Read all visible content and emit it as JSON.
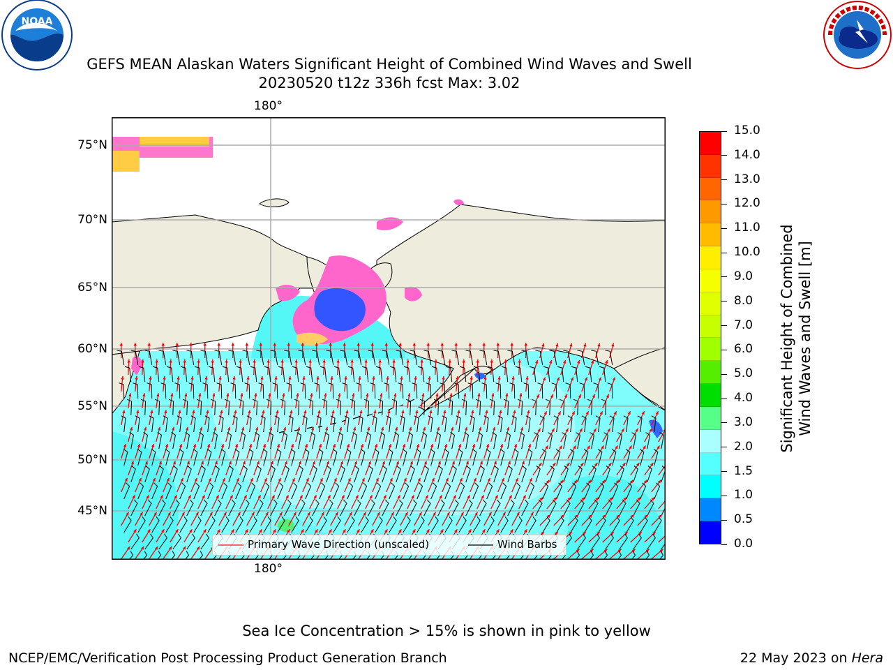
{
  "title": {
    "line1": "GEFS MEAN Alaskan Waters Significant Height of Combined Wind Waves and Swell",
    "line2": "20230520 t12z 336h fcst   Max: 3.02"
  },
  "logos": {
    "left": {
      "name": "noaa-logo",
      "text": "NOAA",
      "ring_text": "NATIONAL OCEANIC AND ATMOSPHERIC ADMINISTRATION · U.S. DEPARTMENT OF COMMERCE"
    },
    "right": {
      "name": "nws-logo",
      "ring_text": "NATIONAL WEATHER SERVICE"
    }
  },
  "map": {
    "lon_labels_top": [
      "180°"
    ],
    "lon_labels_bottom": [
      "180°"
    ],
    "lat_labels": [
      "75°N",
      "70°N",
      "65°N",
      "60°N",
      "55°N",
      "50°N",
      "45°N"
    ],
    "legend": {
      "arrow_label": "Primary Wave Direction (unscaled)",
      "barb_label": "Wind Barbs"
    },
    "colors": {
      "land": "#eeecdc",
      "ocean_low": "#7ffcfc",
      "ocean_mid": "#a8fcfc",
      "ocean_high": "#4ef5f5",
      "ice_pink": "#ff66cc",
      "ice_yellow": "#ffcc33",
      "arrow": "#ff0000",
      "barb": "#000000",
      "grid": "#aaaaaa"
    }
  },
  "colorbar": {
    "label_line1": "Significant Height of Combined",
    "label_line2": "Wind Waves and Swell [m]",
    "ticks": [
      "15.0",
      "14.0",
      "13.0",
      "12.0",
      "11.0",
      "10.0",
      "9.0",
      "8.0",
      "7.0",
      "6.0",
      "5.0",
      "4.0",
      "3.0",
      "2.0",
      "1.5",
      "1.0",
      "0.5",
      "0.0"
    ],
    "colors_top_to_bottom": [
      "#ff0000",
      "#ff3300",
      "#ff6600",
      "#ff9900",
      "#ffbb00",
      "#ffee00",
      "#f5ff00",
      "#e0ff00",
      "#c8ff00",
      "#a0ff00",
      "#55ee00",
      "#00dd00",
      "#55ff88",
      "#aaffff",
      "#55ffff",
      "#00ffff",
      "#0088ff",
      "#0000ff"
    ]
  },
  "notes": {
    "sea_ice": "Sea Ice Concentration > 15% is shown in pink to yellow"
  },
  "footer": {
    "left": "NCEP/EMC/Verification Post Processing Product Generation Branch",
    "right_date": "22 May 2023 on",
    "right_host": "Hera"
  }
}
